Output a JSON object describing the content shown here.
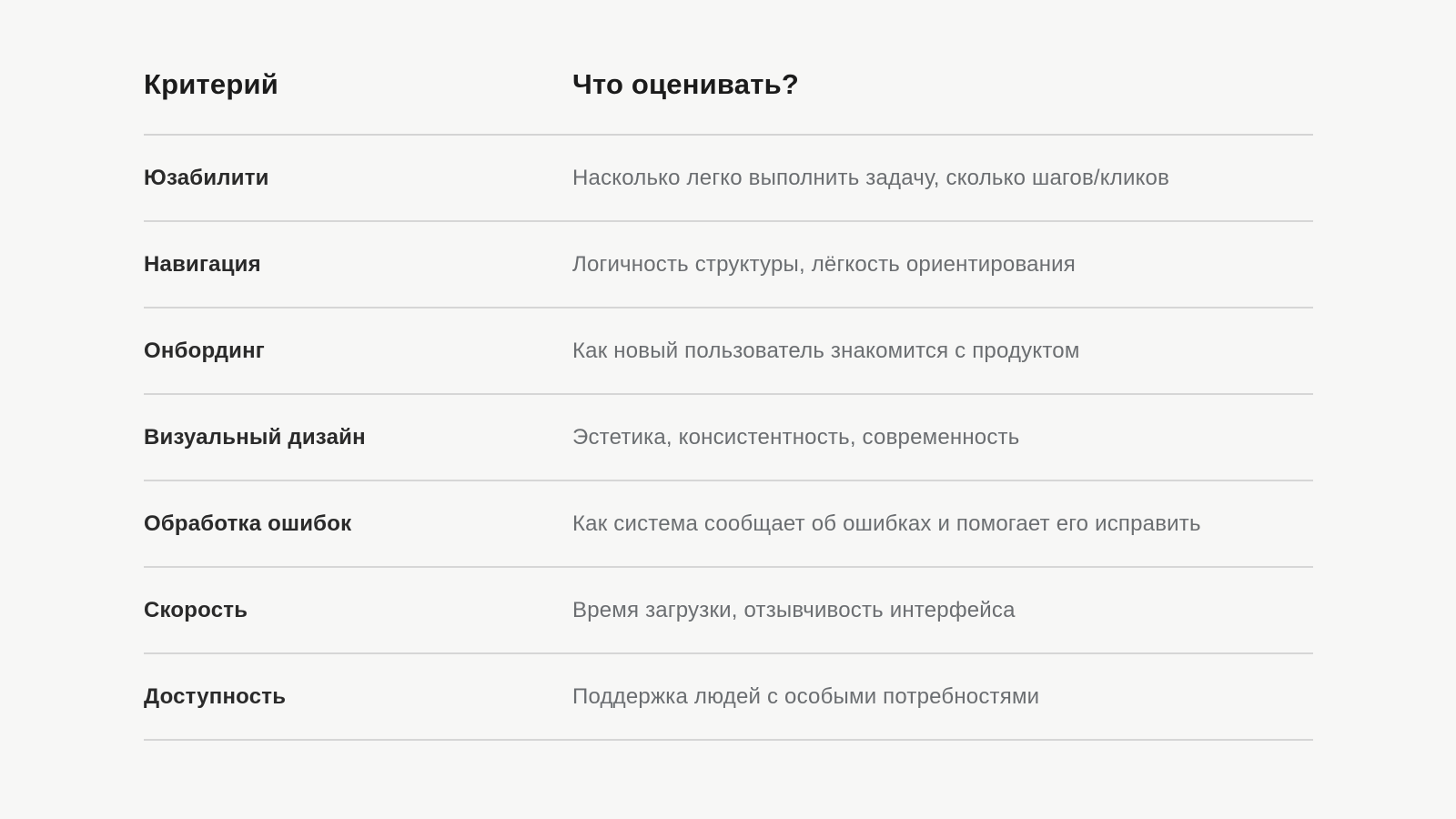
{
  "colors": {
    "page_background": "#f7f7f6",
    "header_text": "#1b1b1b",
    "criterion_text": "#2a2a2a",
    "description_text": "#6b6e71",
    "divider": "#d6d6d6"
  },
  "table": {
    "headers": [
      {
        "label": "Критерий"
      },
      {
        "label": "Что оценивать?"
      }
    ],
    "rows": [
      {
        "criterion": "Юзабилити",
        "description": "Насколько легко выполнить задачу, сколько шагов/кликов"
      },
      {
        "criterion": "Навигация",
        "description": "Логичность структуры, лёгкость ориентирования"
      },
      {
        "criterion": "Онбординг",
        "description": "Как новый пользователь знакомится с продуктом"
      },
      {
        "criterion": "Визуальный дизайн",
        "description": "Эстетика, консистентность, современность"
      },
      {
        "criterion": "Обработка ошибок",
        "description": "Как система сообщает об ошибках и помогает его исправить"
      },
      {
        "criterion": "Скорость",
        "description": "Время загрузки, отзывчивость интерфейса"
      },
      {
        "criterion": "Доступность",
        "description": "Поддержка людей с особыми потребностями"
      }
    ]
  }
}
